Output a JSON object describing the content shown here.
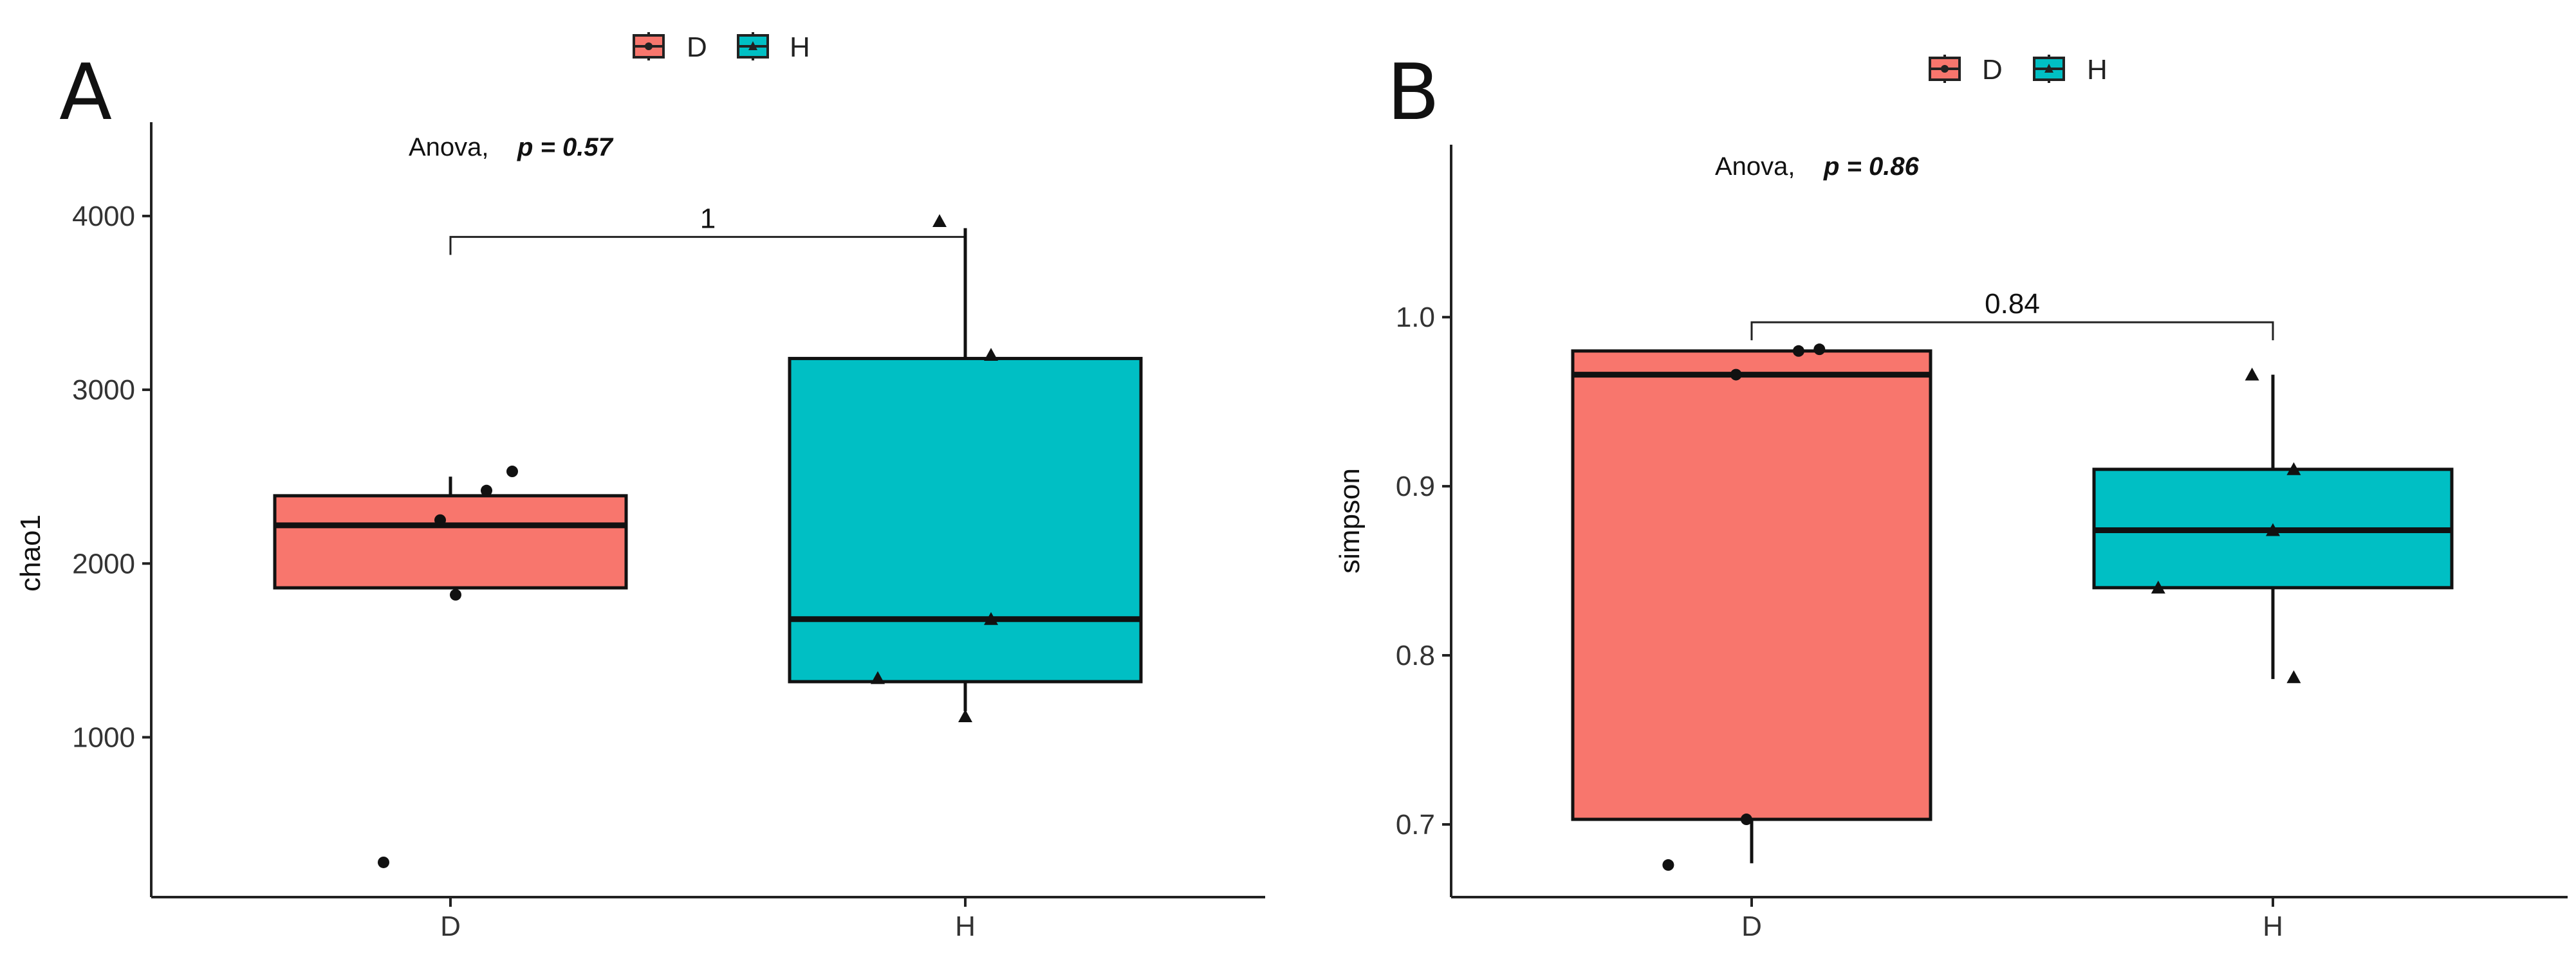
{
  "legend": {
    "items": [
      {
        "label": "D",
        "color": "#F8766D"
      },
      {
        "label": "H",
        "color": "#00BFC4"
      }
    ]
  },
  "chart_data": [
    {
      "type": "box",
      "panel": "A",
      "ylabel": "chao1",
      "xlabel": "",
      "categories": [
        "D",
        "H"
      ],
      "yticks": [
        1000,
        2000,
        3000,
        4000
      ],
      "ylim": [
        80,
        4540
      ],
      "test": {
        "method": "Anova,",
        "p_text": "p = 0.57"
      },
      "comparison": {
        "label": "1",
        "y": 3880
      },
      "groups": [
        {
          "name": "D",
          "color": "#F8766D",
          "marker": "circle",
          "whisker_low": 1860,
          "q1": 1860,
          "median": 2220,
          "q3": 2390,
          "whisker_high": 2500,
          "points": [
            {
              "x": -0.02,
              "y": 2250
            },
            {
              "x": 0.07,
              "y": 2420
            },
            {
              "x": 0.12,
              "y": 2530
            },
            {
              "x": 0.01,
              "y": 1820
            },
            {
              "x": -0.13,
              "y": 280
            }
          ]
        },
        {
          "name": "H",
          "color": "#00BFC4",
          "marker": "triangle",
          "whisker_low": 1150,
          "q1": 1320,
          "median": 1680,
          "q3": 3180,
          "whisker_high": 3930,
          "points": [
            {
              "x": -0.05,
              "y": 3970
            },
            {
              "x": 0.05,
              "y": 3200
            },
            {
              "x": 0.05,
              "y": 1680
            },
            {
              "x": -0.17,
              "y": 1340
            },
            {
              "x": 0.0,
              "y": 1120
            }
          ]
        }
      ]
    },
    {
      "type": "box",
      "panel": "B",
      "ylabel": "simpson",
      "xlabel": "",
      "categories": [
        "D",
        "H"
      ],
      "yticks": [
        0.7,
        0.8,
        0.9,
        1.0
      ],
      "ylim": [
        0.657,
        1.102
      ],
      "test": {
        "method": "Anova,",
        "p_text": "p = 0.86"
      },
      "comparison": {
        "label": "0.84",
        "y": 0.997
      },
      "groups": [
        {
          "name": "D",
          "color": "#F8766D",
          "marker": "circle",
          "whisker_low": 0.677,
          "q1": 0.703,
          "median": 0.966,
          "q3": 0.98,
          "whisker_high": 0.98,
          "points": [
            {
              "x": 0.09,
              "y": 0.98
            },
            {
              "x": 0.13,
              "y": 0.981
            },
            {
              "x": -0.03,
              "y": 0.966
            },
            {
              "x": -0.01,
              "y": 0.703
            },
            {
              "x": -0.16,
              "y": 0.676
            }
          ]
        },
        {
          "name": "H",
          "color": "#00BFC4",
          "marker": "triangle",
          "whisker_low": 0.786,
          "q1": 0.84,
          "median": 0.874,
          "q3": 0.91,
          "whisker_high": 0.966,
          "points": [
            {
              "x": -0.04,
              "y": 0.966
            },
            {
              "x": 0.04,
              "y": 0.91
            },
            {
              "x": 0.0,
              "y": 0.874
            },
            {
              "x": -0.22,
              "y": 0.84
            },
            {
              "x": 0.04,
              "y": 0.787
            }
          ]
        }
      ]
    }
  ]
}
